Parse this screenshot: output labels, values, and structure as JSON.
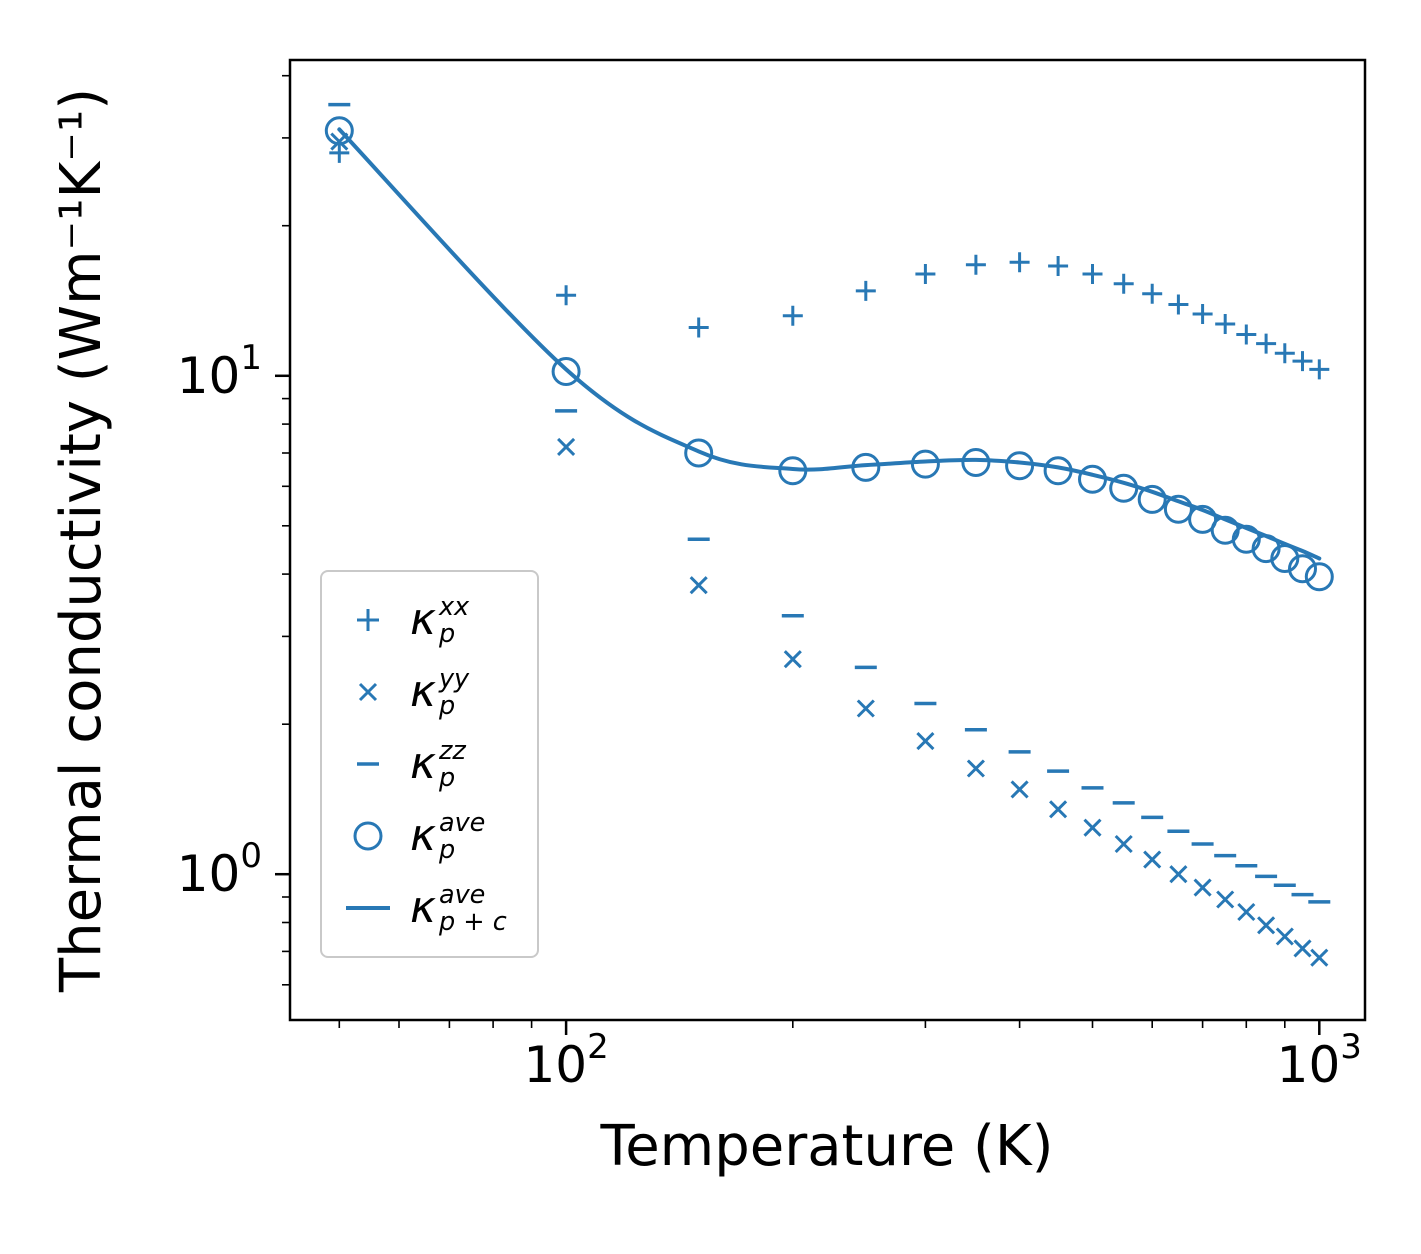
{
  "figure": {
    "background": "#ffffff",
    "accent_color": "#2878b5"
  },
  "chart_data": {
    "type": "scatter",
    "title": "",
    "xlabel": "Temperature (K)",
    "ylabel": "Thermal conductivity (Wm⁻¹K⁻¹)",
    "x_scale": "log",
    "y_scale": "log",
    "xlim": [
      43,
      1150
    ],
    "ylim": [
      0.51,
      43
    ],
    "grid": false,
    "legend_position": "lower left",
    "color": "#2878b5",
    "xticks": [
      {
        "base": "10",
        "exp": "2",
        "value": 100
      },
      {
        "base": "10",
        "exp": "3",
        "value": 1000
      }
    ],
    "yticks": [
      {
        "base": "10",
        "exp": "0",
        "value": 1
      },
      {
        "base": "10",
        "exp": "1",
        "value": 10
      }
    ],
    "temperatures": [
      50,
      100,
      150,
      200,
      250,
      300,
      350,
      400,
      450,
      500,
      550,
      600,
      650,
      700,
      750,
      800,
      850,
      900,
      950,
      1000
    ],
    "series": [
      {
        "name": "kappa-p-xx",
        "marker": "plus",
        "label": {
          "base": "κ",
          "sup": "xx",
          "sub": "p"
        },
        "values": [
          28,
          14.5,
          12.5,
          13.2,
          14.8,
          16.0,
          16.7,
          16.9,
          16.6,
          16.0,
          15.3,
          14.6,
          13.9,
          13.3,
          12.7,
          12.1,
          11.6,
          11.1,
          10.7,
          10.3
        ]
      },
      {
        "name": "kappa-p-yy",
        "marker": "cross",
        "label": {
          "base": "κ",
          "sup": "yy",
          "sub": "p"
        },
        "values": [
          29.5,
          7.2,
          3.8,
          2.7,
          2.15,
          1.85,
          1.63,
          1.48,
          1.35,
          1.24,
          1.15,
          1.07,
          1.0,
          0.94,
          0.89,
          0.84,
          0.79,
          0.75,
          0.71,
          0.68
        ]
      },
      {
        "name": "kappa-p-zz",
        "marker": "dash",
        "label": {
          "base": "κ",
          "sup": "zz",
          "sub": "p"
        },
        "values": [
          35,
          8.5,
          4.7,
          3.3,
          2.6,
          2.2,
          1.95,
          1.76,
          1.61,
          1.49,
          1.39,
          1.3,
          1.22,
          1.15,
          1.09,
          1.04,
          0.99,
          0.95,
          0.91,
          0.88
        ]
      },
      {
        "name": "kappa-p-ave",
        "marker": "circle",
        "label": {
          "base": "κ",
          "sup": "ave",
          "sub": "p"
        },
        "values": [
          31,
          10.2,
          7.0,
          6.45,
          6.55,
          6.65,
          6.7,
          6.6,
          6.45,
          6.2,
          5.95,
          5.65,
          5.4,
          5.15,
          4.9,
          4.7,
          4.5,
          4.3,
          4.1,
          3.95
        ]
      },
      {
        "name": "kappa-p-plus-c-ave",
        "marker": "line",
        "label": {
          "base": "κ",
          "sup": "ave",
          "sub": "p + c"
        },
        "values": [
          31.2,
          10.3,
          7.05,
          6.5,
          6.62,
          6.73,
          6.78,
          6.7,
          6.55,
          6.33,
          6.1,
          5.85,
          5.6,
          5.38,
          5.15,
          4.95,
          4.77,
          4.6,
          4.45,
          4.3
        ]
      }
    ]
  }
}
